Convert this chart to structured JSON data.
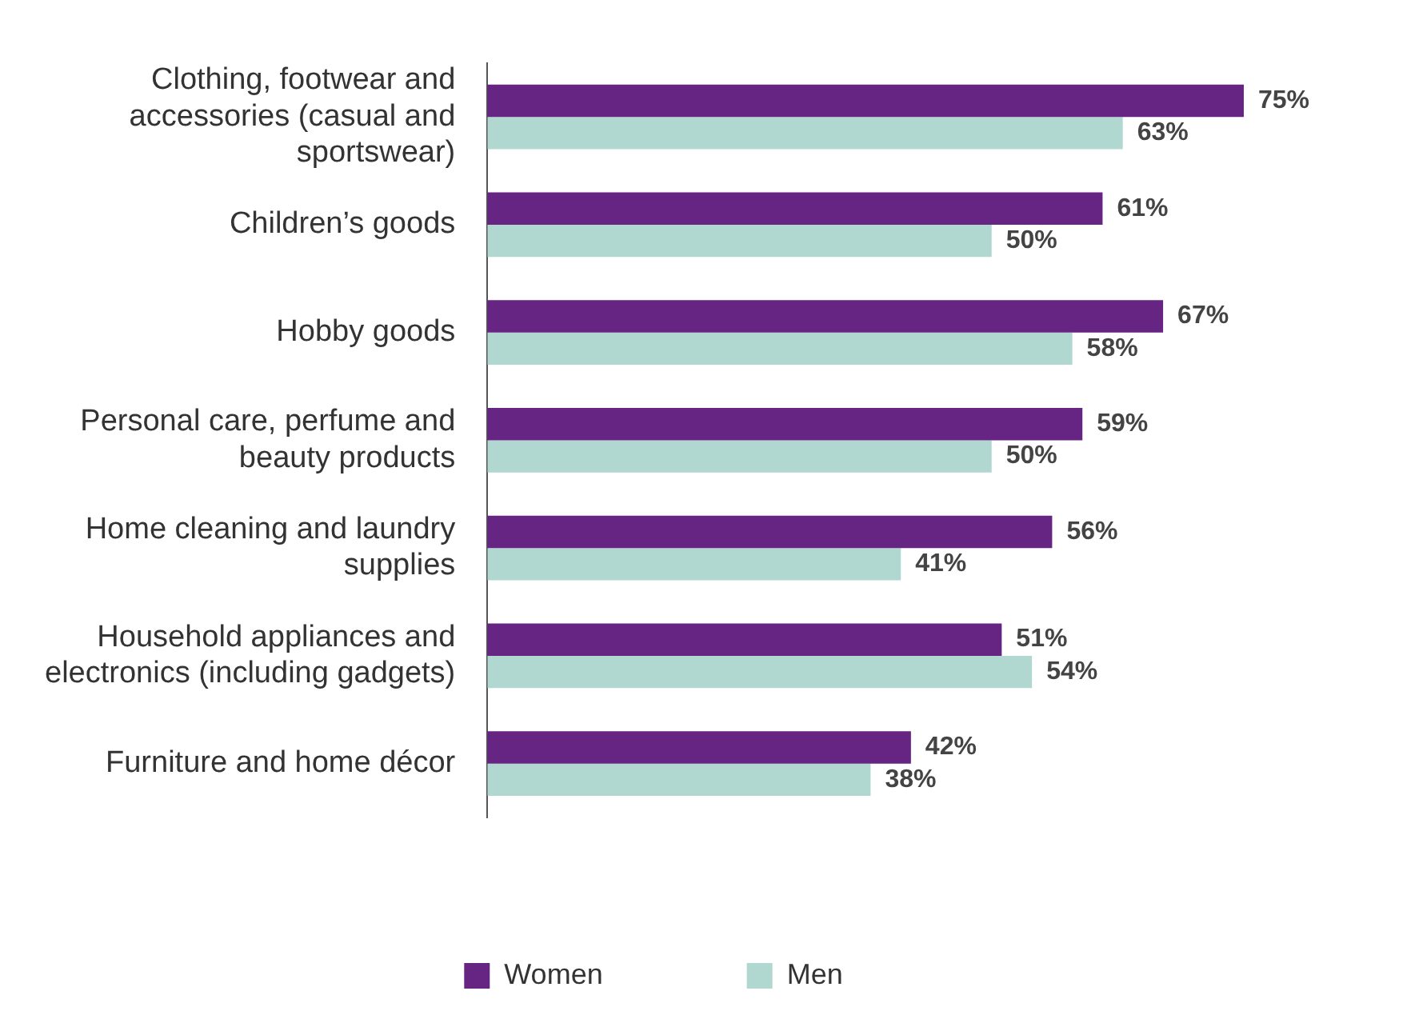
{
  "chart_data": {
    "type": "bar",
    "orientation": "horizontal",
    "legend": "bottom",
    "categories": [
      "Clothing, footwear and accessories (casual and sportswear)",
      "Children’s goods",
      "Hobby goods",
      "Personal care, perfume and beauty products",
      "Home cleaning and laundry supplies",
      "Household appliances and electronics (including gadgets)",
      "Furniture and home décor"
    ],
    "series": [
      {
        "name": "Women",
        "color": "#662483",
        "values": [
          75,
          61,
          67,
          59,
          56,
          51,
          42
        ],
        "value_labels": [
          "75%",
          "61%",
          "67%",
          "59%",
          "56%",
          "51%",
          "42%"
        ]
      },
      {
        "name": "Men",
        "color": "#b0d8d0",
        "values": [
          63,
          50,
          58,
          50,
          41,
          54,
          38
        ],
        "value_labels": [
          "63%",
          "50%",
          "58%",
          "50%",
          "41%",
          "54%",
          "38%"
        ]
      }
    ]
  }
}
